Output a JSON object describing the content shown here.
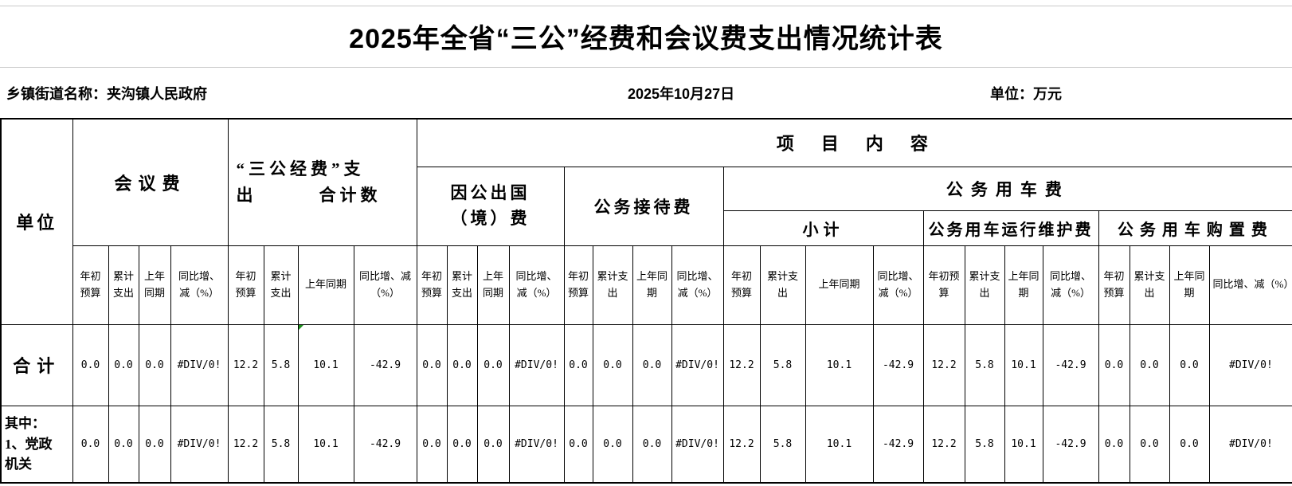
{
  "title": "2025年全省“三公”经费和会议费支出情况统计表",
  "info": {
    "org": "乡镇街道名称：夹沟镇人民政府",
    "date": "2025年10月27日",
    "unit": "单位：万元"
  },
  "table": {
    "corner": "单位",
    "group_meeting": "会议费",
    "group_total": "“三公经费”支\n出　　　合计数",
    "project_content": "项　目　内　容",
    "group_abroad": "因公出国\n（境）费",
    "group_reception": "公务接待费",
    "group_vehicle": "公务用车费",
    "vehicle_subtotal": "小计",
    "vehicle_maintenance": "公务用车运行维护费",
    "vehicle_purchase": "公务用车购置费",
    "subheaders": [
      "年初预算",
      "累计支出",
      "上年同期",
      "同比增、减（%）",
      "年初预算",
      "累计支出",
      "上年同期",
      "同比增、减（%）",
      "年初预算",
      "累计支出",
      "上年同期",
      "同比增、减（%）",
      "年初预算",
      "累计支出",
      "上年同期",
      "同比增、减（%）",
      "年初预算",
      "累计支出",
      "上年同期",
      "同比增、减（%）",
      "年初预算",
      "累计支出",
      "上年同期",
      "同比增、减（%）",
      "年初预算",
      "累计支出",
      "上年同期",
      "同比增、减（%）"
    ],
    "rows": [
      {
        "label": "合计",
        "values": [
          "0.0",
          "0.0",
          "0.0",
          "#DIV/0!",
          "12.2",
          "5.8",
          "10.1",
          "-42.9",
          "0.0",
          "0.0",
          "0.0",
          "#DIV/0!",
          "0.0",
          "0.0",
          "0.0",
          "#DIV/0!",
          "12.2",
          "5.8",
          "10.1",
          "-42.9",
          "12.2",
          "5.8",
          "10.1",
          "-42.9",
          "0.0",
          "0.0",
          "0.0",
          "#DIV/0!"
        ]
      },
      {
        "label": "其中：\n1、党政\n机关",
        "values": [
          "0.0",
          "0.0",
          "0.0",
          "#DIV/0!",
          "12.2",
          "5.8",
          "10.1",
          "-42.9",
          "0.0",
          "0.0",
          "0.0",
          "#DIV/0!",
          "0.0",
          "0.0",
          "0.0",
          "#DIV/0!",
          "12.2",
          "5.8",
          "10.1",
          "-42.9",
          "12.2",
          "5.8",
          "10.1",
          "-42.9",
          "0.0",
          "0.0",
          "0.0",
          "#DIV/0!"
        ]
      }
    ],
    "error_marker": {
      "row": 0,
      "col": 6,
      "color": "#1e8f1e"
    }
  }
}
